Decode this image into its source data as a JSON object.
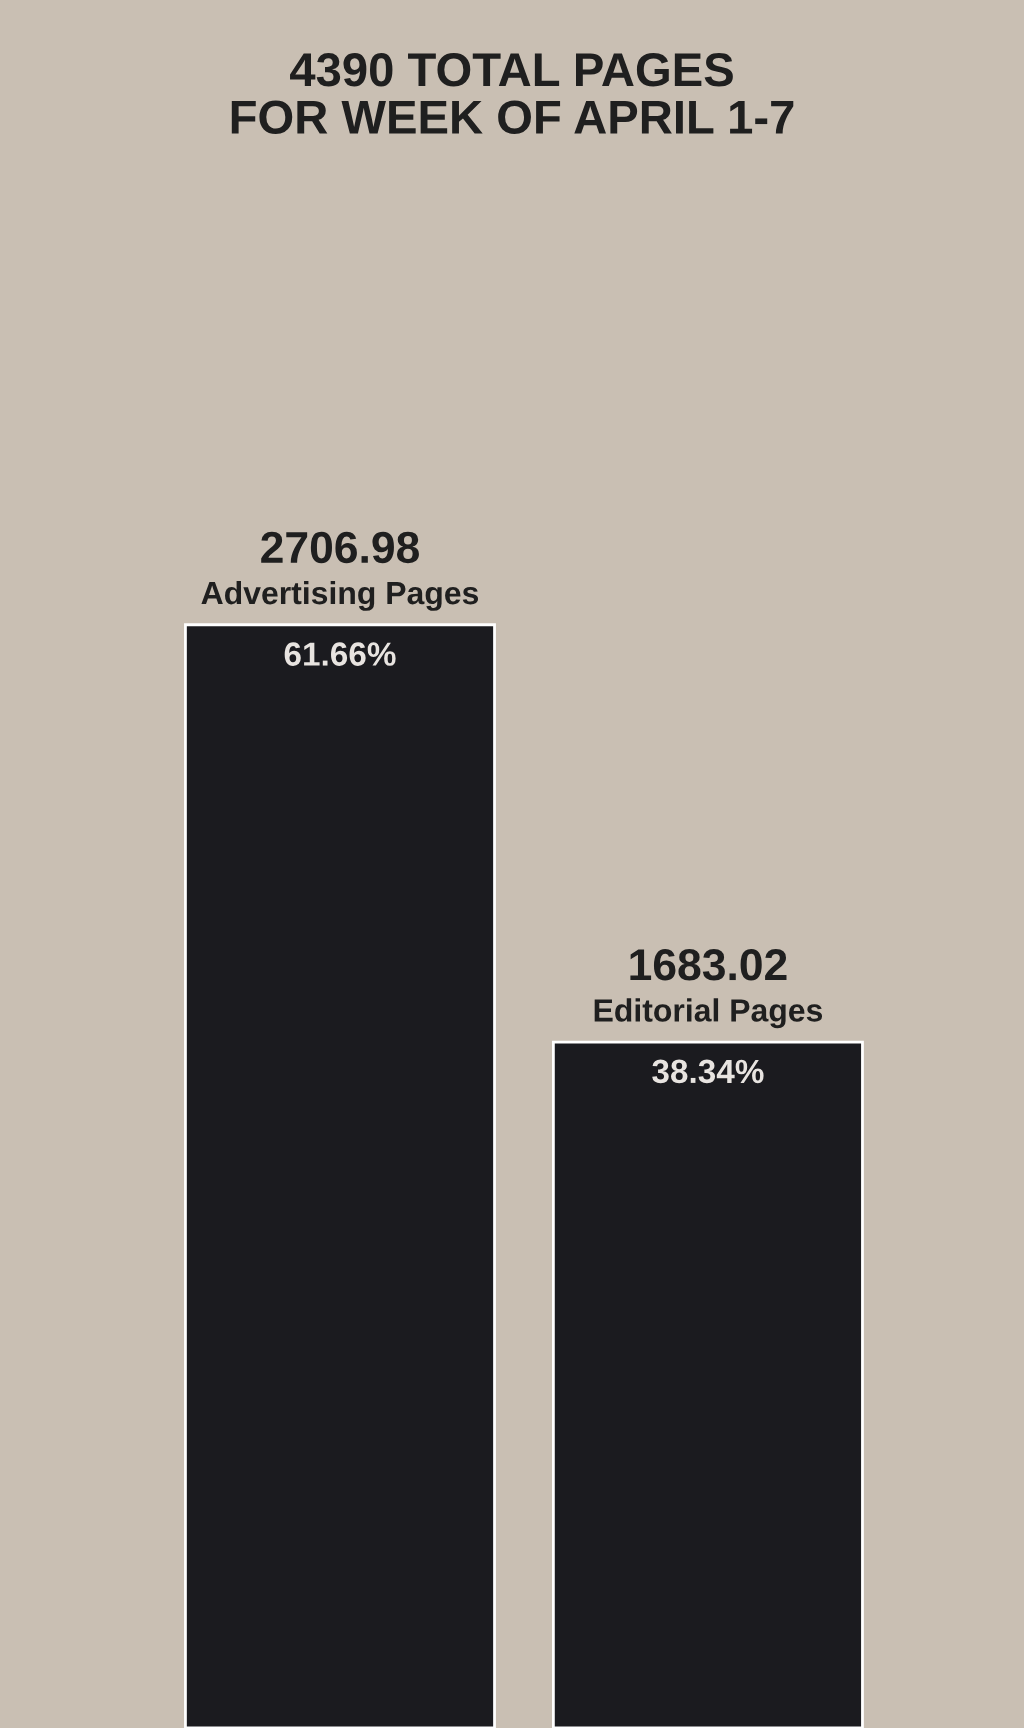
{
  "chart_data": {
    "type": "bar",
    "title": "4390 TOTAL PAGES\nFOR WEEK OF APRIL 1-7",
    "categories": [
      "Advertising Pages",
      "Editorial Pages"
    ],
    "values": [
      2706.98,
      1683.02
    ],
    "color": "#1b1b1f",
    "data_labels": true,
    "annotations": [
      {
        "text": "61.66%",
        "x": "Advertising Pages",
        "y": 2706.98
      },
      {
        "text": "38.34%",
        "x": "Editorial Pages",
        "y": 1683.02
      }
    ]
  }
}
